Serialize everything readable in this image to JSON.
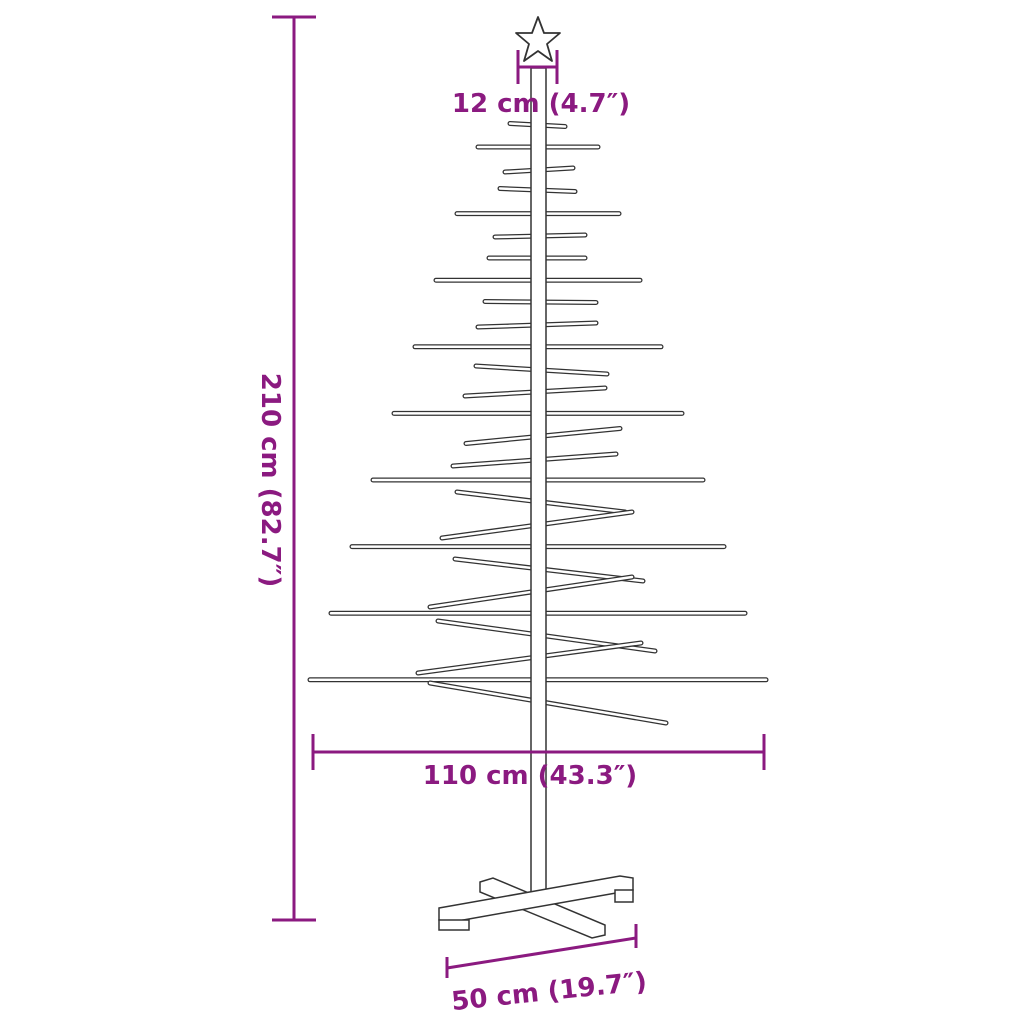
{
  "dimensions": {
    "height": "210 cm (82.7″)",
    "width": "110 cm (43.3″)",
    "star_width": "12 cm (4.7″)",
    "base_width": "50 cm (19.7″)"
  },
  "colors": {
    "dimension": "#8b1a80",
    "outline": "#333333"
  }
}
